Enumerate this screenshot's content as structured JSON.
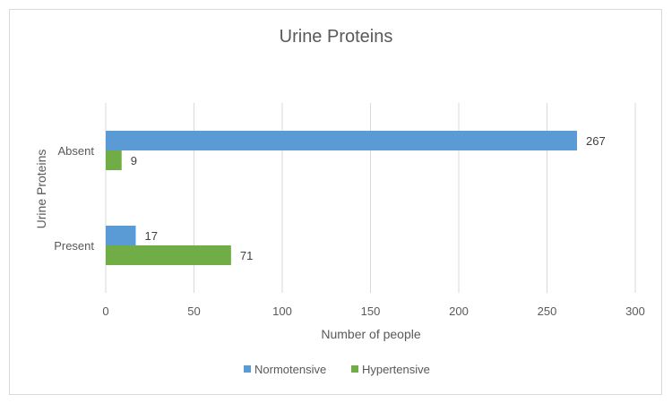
{
  "chart_data": {
    "type": "bar",
    "orientation": "horizontal",
    "title": "Urine Proteins",
    "xlabel": "Number of people",
    "ylabel": "Urine Proteins",
    "categories": [
      "Absent",
      "Present"
    ],
    "series": [
      {
        "name": "Normotensive",
        "values": [
          267,
          17
        ],
        "color": "#5b9bd5"
      },
      {
        "name": "Hypertensive",
        "values": [
          9,
          71
        ],
        "color": "#70ad47"
      }
    ],
    "xlim": [
      0,
      300
    ],
    "xticks": [
      "0",
      "50",
      "100",
      "150",
      "200",
      "250",
      "300"
    ],
    "grid": true,
    "legend_position": "bottom"
  }
}
